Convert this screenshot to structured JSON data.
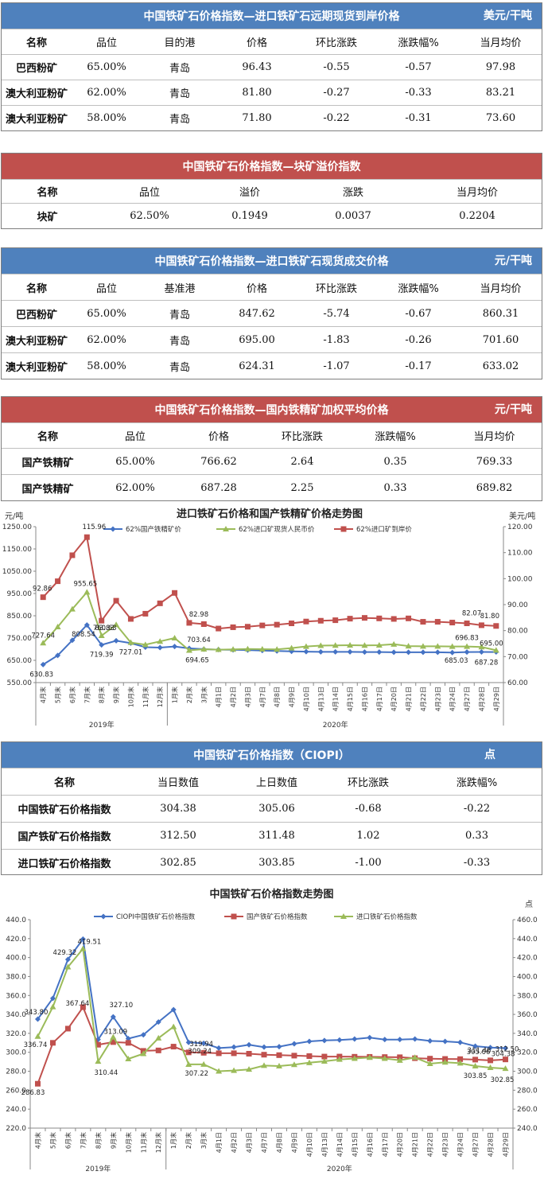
{
  "t1": {
    "title": "中国铁矿石价格指数—进口铁矿石远期现货到岸价格",
    "unit": "美元/干吨",
    "headers": [
      "名称",
      "品位",
      "目的港",
      "价格",
      "环比涨跌",
      "涨跌幅%",
      "当月均价"
    ],
    "rows": [
      [
        "巴西粉矿",
        "65.00%",
        "青岛",
        "96.43",
        "-0.55",
        "-0.57",
        "97.98"
      ],
      [
        "澳大利亚粉矿",
        "62.00%",
        "青岛",
        "81.80",
        "-0.27",
        "-0.33",
        "83.21"
      ],
      [
        "澳大利亚粉矿",
        "58.00%",
        "青岛",
        "71.80",
        "-0.22",
        "-0.31",
        "73.60"
      ]
    ]
  },
  "t2": {
    "title": "中国铁矿石价格指数—块矿溢价指数",
    "headers": [
      "名称",
      "品位",
      "溢价",
      "涨跌",
      "当月均价"
    ],
    "rows": [
      [
        "块矿",
        "62.50%",
        "0.1949",
        "0.0037",
        "0.2204"
      ]
    ]
  },
  "t3": {
    "title": "中国铁矿石价格指数—进口铁矿石现货成交价格",
    "unit": "元/干吨",
    "headers": [
      "名称",
      "品位",
      "基准港",
      "价格",
      "环比涨跌",
      "涨跌幅%",
      "当月均价"
    ],
    "rows": [
      [
        "巴西粉矿",
        "65.00%",
        "青岛",
        "847.62",
        "-5.74",
        "-0.67",
        "860.31"
      ],
      [
        "澳大利亚粉矿",
        "62.00%",
        "青岛",
        "695.00",
        "-1.83",
        "-0.26",
        "701.60"
      ],
      [
        "澳大利亚粉矿",
        "58.00%",
        "青岛",
        "624.31",
        "-1.07",
        "-0.17",
        "633.02"
      ]
    ]
  },
  "t4": {
    "title": "中国铁矿石价格指数—国内铁精矿加权平均价格",
    "unit": "元/干吨",
    "headers": [
      "名称",
      "品位",
      "价格",
      "环比涨跌",
      "涨跌幅%",
      "当月均价"
    ],
    "rows": [
      [
        "国产铁精矿",
        "65.00%",
        "766.62",
        "2.64",
        "0.35",
        "769.33"
      ],
      [
        "国产铁精矿",
        "62.00%",
        "687.28",
        "2.25",
        "0.33",
        "689.82"
      ]
    ]
  },
  "t5": {
    "title": "中国铁矿石价格指数（CIOPI）",
    "unit": "点",
    "headers": [
      "名称",
      "当日数值",
      "上日数值",
      "环比涨跌",
      "涨跌幅%"
    ],
    "rows": [
      [
        "中国铁矿石价格指数",
        "304.38",
        "305.06",
        "-0.68",
        "-0.22"
      ],
      [
        "国产铁矿石价格指数",
        "312.50",
        "311.48",
        "1.02",
        "0.33"
      ],
      [
        "进口铁矿石价格指数",
        "302.85",
        "303.85",
        "-1.00",
        "-0.33"
      ]
    ]
  },
  "chart_data": [
    {
      "type": "line",
      "title": "进口铁矿石价格和国产铁精矿价格走势图",
      "ylabel_left": "元/吨",
      "ylabel_right": "美元/吨",
      "ylim_left": [
        550,
        1250
      ],
      "ylim_right": [
        60,
        120
      ],
      "yticks_left": [
        "550.00",
        "650.00",
        "750.00",
        "850.00",
        "950.00",
        "1050.00",
        "1150.00",
        "1250.00"
      ],
      "yticks_right": [
        "60.00",
        "70.00",
        "80.00",
        "90.00",
        "100.00",
        "110.00",
        "120.00"
      ],
      "categories": [
        "4月末",
        "5月末",
        "6月末",
        "7月末",
        "8月末",
        "9月末",
        "10月末",
        "11月末",
        "12月末",
        "1月末",
        "2月末",
        "3月末",
        "4月1日",
        "4月2日",
        "4月3日",
        "4月7日",
        "4月8日",
        "4月9日",
        "4月10日",
        "4月13日",
        "4月14日",
        "4月15日",
        "4月16日",
        "4月17日",
        "4月20日",
        "4月21日",
        "4月22日",
        "4月23日",
        "4月24日",
        "4月27日",
        "4月28日",
        "4月29日"
      ],
      "year_labels": [
        "2019年",
        "2020年"
      ],
      "legend_position": "top",
      "series": [
        {
          "name": "62%国产铁精矿价",
          "axis": "left",
          "color": "#4472c4",
          "marker": "diamond",
          "values": [
            630.83,
            672,
            740,
            808.54,
            719.39,
            738,
            727.01,
            709,
            707,
            712,
            703.64,
            700,
            698,
            697,
            696,
            694,
            692,
            690,
            689,
            688,
            688,
            688,
            687,
            687,
            686,
            686,
            686,
            686,
            685.03,
            687,
            687.5,
            687.28
          ]
        },
        {
          "name": "62%进口矿现货人民币价",
          "axis": "left",
          "color": "#9bbb59",
          "marker": "triangle",
          "values": [
            727.64,
            800,
            880,
            955.65,
            760.63,
            810,
            730,
            720,
            735,
            750,
            694.65,
            700,
            698,
            699,
            701,
            700,
            699,
            705,
            712,
            716,
            717,
            718,
            717,
            718,
            722,
            714,
            713,
            713,
            712,
            712,
            710,
            695.0
          ]
        },
        {
          "name": "62%进口矿到岸价",
          "axis": "right",
          "color": "#c0504d",
          "marker": "square",
          "values": [
            92.86,
            99,
            109,
            115.96,
            83.83,
            91.5,
            84.5,
            86.5,
            90.5,
            94.5,
            82.98,
            82.5,
            80.8,
            81.3,
            81.5,
            82.0,
            82.3,
            82.8,
            83.5,
            83.8,
            84.0,
            84.6,
            84.9,
            84.7,
            84.5,
            84.7,
            83.4,
            83.4,
            83.1,
            82.8,
            82.07,
            81.8
          ]
        }
      ],
      "annotations": [
        "92.86",
        "727.64",
        "630.83",
        "808.54",
        "955.65",
        "115.96",
        "83.83",
        "760.63",
        "719.39",
        "727.01",
        "703.64",
        "694.65",
        "82.98",
        "696.83",
        "695.00",
        "685.03",
        "687.28",
        "82.07",
        "81.80"
      ]
    },
    {
      "type": "line",
      "title": "中国铁矿石价格指数走势图",
      "ylabel_right": "点",
      "ylim_left": [
        220,
        440
      ],
      "ylim_right": [
        240,
        460
      ],
      "yticks_left": [
        "220.0",
        "240.0",
        "260.0",
        "280.0",
        "300.0",
        "320.0",
        "340.0",
        "360.0",
        "380.0",
        "400.0",
        "420.0",
        "440.0"
      ],
      "yticks_right": [
        "240.0",
        "260.0",
        "280.0",
        "300.0",
        "320.0",
        "340.0",
        "360.0",
        "380.0",
        "400.0",
        "420.0",
        "440.0",
        "460.0"
      ],
      "categories": [
        "4月末",
        "5月末",
        "6月末",
        "7月末",
        "8月末",
        "9月末",
        "10月末",
        "11月末",
        "12月末",
        "1月末",
        "2月末",
        "3月末",
        "4月1日",
        "4月2日",
        "4月3日",
        "4月7日",
        "4月8日",
        "4月9日",
        "4月10日",
        "4月13日",
        "4月14日",
        "4月15日",
        "4月16日",
        "4月17日",
        "4月20日",
        "4月21日",
        "4月22日",
        "4月23日",
        "4月24日",
        "4月27日",
        "4月28日",
        "4月29日"
      ],
      "year_labels": [
        "2019年",
        "2020年"
      ],
      "legend_position": "top",
      "series": [
        {
          "name": "CIOPI中国铁矿石价格指数",
          "axis": "left",
          "color": "#4472c4",
          "marker": "diamond",
          "values": [
            335,
            357,
            398,
            419.51,
            313.5,
            337.5,
            314.5,
            318.5,
            332,
            345,
            310.5,
            309.5,
            304.5,
            305.5,
            308,
            305.5,
            306,
            309,
            311.5,
            312.5,
            313,
            314,
            315.5,
            313.5,
            313.5,
            314,
            312,
            311.5,
            310.5,
            306.5,
            305.06,
            304.38
          ]
        },
        {
          "name": "国产铁矿石价格指数",
          "axis": "right",
          "color": "#c0504d",
          "marker": "square",
          "values": [
            286.83,
            330,
            345,
            367.64,
            328,
            330.8,
            330,
            321.5,
            322,
            326,
            319.94,
            319.5,
            319,
            319,
            318.5,
            317.5,
            317,
            316.5,
            316,
            315.5,
            315.5,
            315.3,
            315.2,
            315,
            314.8,
            313.8,
            313.3,
            313,
            312.8,
            312.3,
            311.48,
            312.5
          ]
        },
        {
          "name": "进口铁矿石价格指数",
          "axis": "right",
          "color": "#9bbb59",
          "marker": "triangle",
          "values": [
            336.74,
            368,
            410,
            429.32,
            310.44,
            336,
            313.09,
            318.5,
            335,
            347,
            307.22,
            307.3,
            300,
            300.8,
            302,
            306,
            305.5,
            307,
            309,
            310.5,
            312.5,
            313.5,
            314.5,
            313.5,
            311.5,
            314.5,
            308,
            309.5,
            308.5,
            305.5,
            303.85,
            302.85
          ]
        }
      ],
      "annotations": [
        "343.80",
        "336.74",
        "286.83",
        "429.32",
        "367.64",
        "419.51",
        "327.10",
        "313.09",
        "310.44",
        "319.94",
        "309.24",
        "307.22",
        "311.48",
        "312.50",
        "305.06",
        "304.38",
        "303.85",
        "302.85"
      ]
    }
  ]
}
